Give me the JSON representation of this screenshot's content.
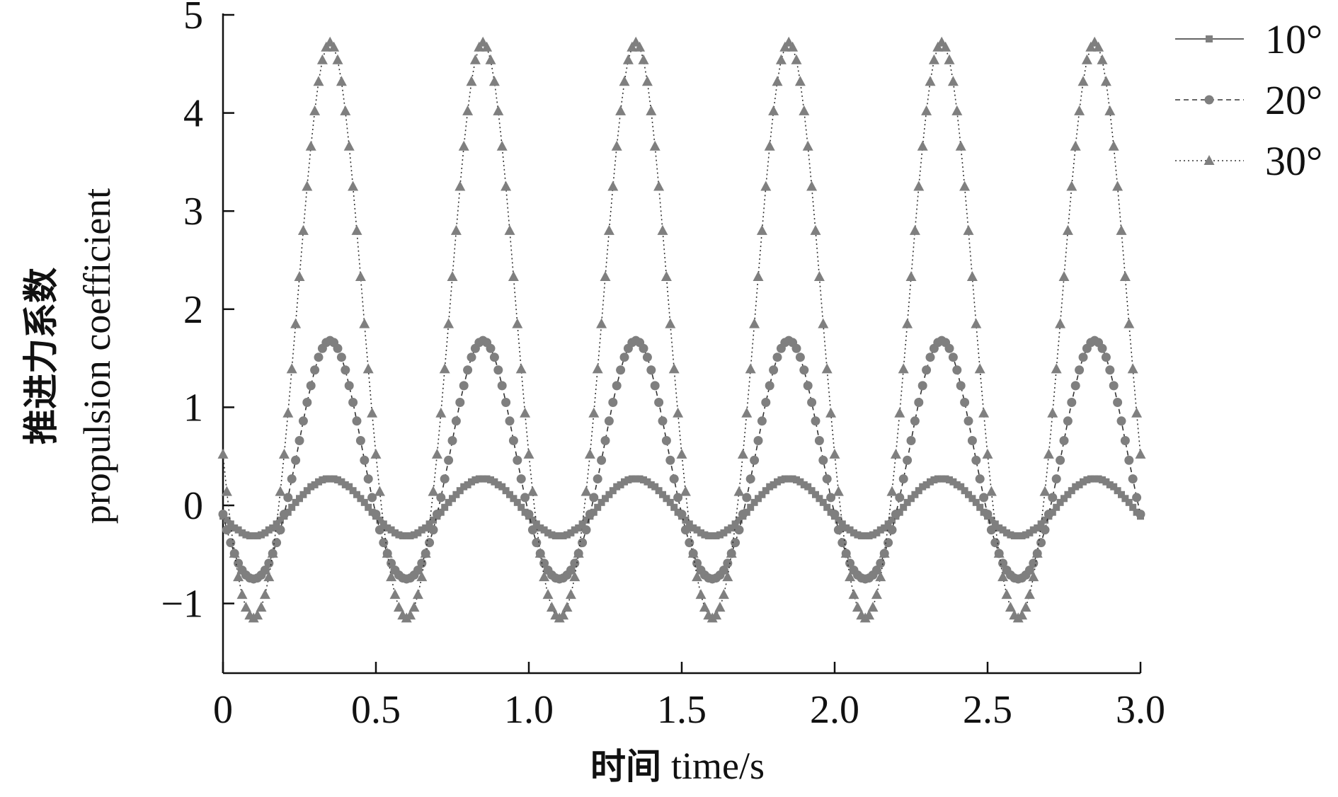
{
  "chart_data": {
    "type": "line",
    "title": "",
    "xlabel_cn": "时间",
    "xlabel": "time/s",
    "ylabel_cn": "推进力系数",
    "ylabel": "propulsion coefficient",
    "xlim": [
      0,
      3.0
    ],
    "ylim": [
      -1.7,
      5
    ],
    "x_ticks": [
      "0",
      "0.5",
      "1.0",
      "1.5",
      "2.0",
      "2.5",
      "3.0"
    ],
    "x_tick_values": [
      0,
      0.5,
      1.0,
      1.5,
      2.0,
      2.5,
      3.0
    ],
    "y_ticks": [
      "-1",
      "0",
      "1",
      "2",
      "3",
      "4",
      "5"
    ],
    "y_tick_values": [
      -1,
      0,
      1,
      2,
      3,
      4,
      5
    ],
    "grid": false,
    "legend_position": "top-right",
    "sampling": {
      "dt": 0.0125,
      "period": 0.5,
      "cycles": 6,
      "note": "cycle_values repeat each period from t=0"
    },
    "series": [
      {
        "name": "10°",
        "marker": "square",
        "line": "solid",
        "color": "#7f7f7f",
        "cycle_values": [
          -0.11,
          -0.15,
          -0.19,
          -0.23,
          -0.25,
          -0.28,
          -0.3,
          -0.31,
          -0.31,
          -0.31,
          -0.3,
          -0.28,
          -0.25,
          -0.23,
          -0.19,
          -0.15,
          -0.11,
          -0.07,
          -0.02,
          0.03,
          0.07,
          0.11,
          0.15,
          0.19,
          0.21,
          0.24,
          0.26,
          0.27,
          0.27,
          0.27,
          0.26,
          0.24,
          0.21,
          0.19,
          0.15,
          0.11,
          0.07,
          0.03,
          -0.02,
          -0.07
        ]
      },
      {
        "name": "20°",
        "marker": "circle",
        "line": "dashed",
        "color": "#7f7f7f",
        "cycle_values": [
          -0.09,
          -0.25,
          -0.38,
          -0.49,
          -0.59,
          -0.66,
          -0.71,
          -0.74,
          -0.75,
          -0.74,
          -0.71,
          -0.66,
          -0.59,
          -0.49,
          -0.38,
          -0.25,
          -0.09,
          0.08,
          0.27,
          0.46,
          0.66,
          0.86,
          1.05,
          1.22,
          1.38,
          1.51,
          1.6,
          1.66,
          1.68,
          1.66,
          1.6,
          1.51,
          1.38,
          1.22,
          1.05,
          0.86,
          0.66,
          0.46,
          0.27,
          0.08
        ]
      },
      {
        "name": "30°",
        "marker": "triangle",
        "line": "dotted",
        "color": "#7f7f7f",
        "cycle_values": [
          0.52,
          0.14,
          -0.2,
          -0.49,
          -0.73,
          -0.91,
          -1.04,
          -1.12,
          -1.15,
          -1.12,
          -1.04,
          -0.91,
          -0.73,
          -0.49,
          -0.2,
          0.14,
          0.52,
          0.94,
          1.39,
          1.85,
          2.33,
          2.8,
          3.25,
          3.66,
          4.02,
          4.32,
          4.54,
          4.67,
          4.72,
          4.67,
          4.54,
          4.32,
          4.02,
          3.66,
          3.25,
          2.8,
          2.33,
          1.85,
          1.39,
          0.94
        ]
      }
    ]
  }
}
